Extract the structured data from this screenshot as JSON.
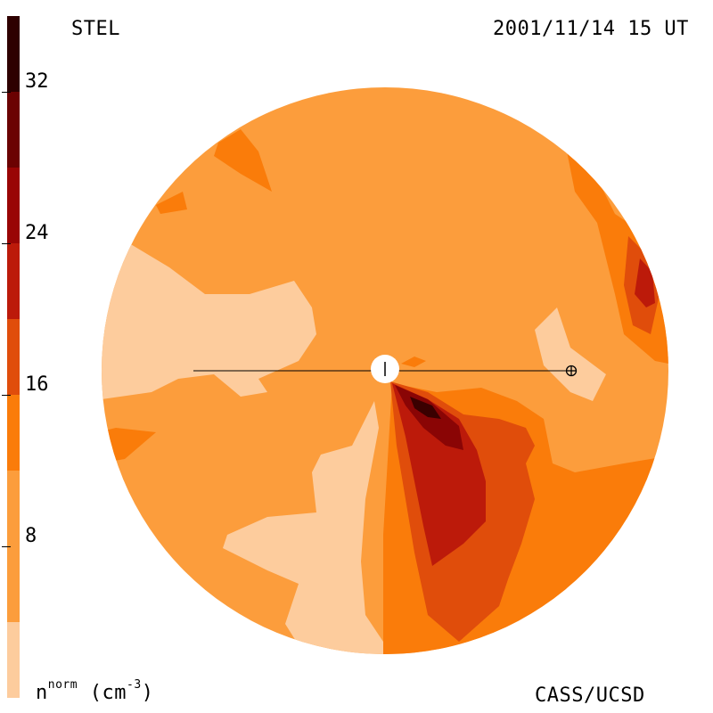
{
  "header": {
    "observatory": "STEL",
    "timestamp": "2001/11/14 15 UT"
  },
  "footer": {
    "credit": "CASS/UCSD"
  },
  "colorbar": {
    "title_base": "n",
    "title_sup": "norm",
    "title_units": " (cm",
    "title_units_sup": "-3",
    "title_units_end": ")",
    "range": [
      0,
      36
    ],
    "ticks": [
      {
        "value": 8,
        "label": "8"
      },
      {
        "value": 16,
        "label": "16"
      },
      {
        "value": 24,
        "label": "24"
      },
      {
        "value": 32,
        "label": "32"
      }
    ],
    "bands": [
      {
        "from": 0,
        "to": 4,
        "color": "#fdcc9d"
      },
      {
        "from": 4,
        "to": 12,
        "color": "#fc9d3c"
      },
      {
        "from": 12,
        "to": 16,
        "color": "#fa7c0a"
      },
      {
        "from": 16,
        "to": 20,
        "color": "#e04d0b"
      },
      {
        "from": 20,
        "to": 24,
        "color": "#bc1a0a"
      },
      {
        "from": 24,
        "to": 28,
        "color": "#990505"
      },
      {
        "from": 28,
        "to": 32,
        "color": "#6b0202"
      },
      {
        "from": 32,
        "to": 36,
        "color": "#2e0000"
      }
    ]
  },
  "colors": {
    "background_disk": "#fc9d3c",
    "light": "#fdcc9d",
    "orange": "#fa7c0a",
    "red_orange": "#e04d0b",
    "red": "#bc1a0a",
    "dark_red": "#8a0505",
    "darkest": "#3a0000"
  },
  "symbols": {
    "sun": "sun-symbol",
    "earth": "earth-symbol"
  }
}
